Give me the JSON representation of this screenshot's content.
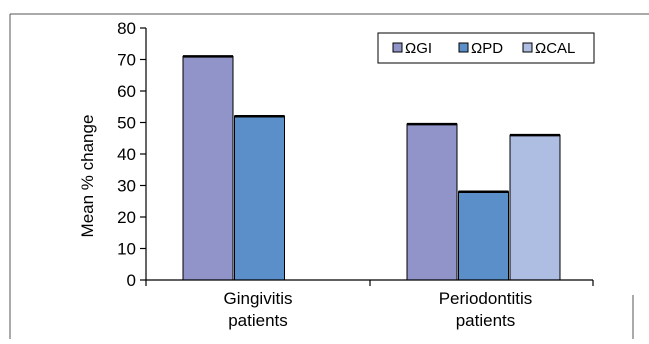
{
  "chart_data": {
    "type": "bar",
    "categories": [
      [
        "Gingivitis",
        "patients"
      ],
      [
        "Periodontitis",
        "patients"
      ]
    ],
    "series": [
      {
        "name": "ΩGI",
        "values": [
          71,
          49.5
        ],
        "color": "#9194c9"
      },
      {
        "name": "ΩPD",
        "values": [
          52,
          28
        ],
        "color": "#5a8fc9"
      },
      {
        "name": "ΩCAL",
        "values": [
          null,
          46
        ],
        "color": "#aebde2"
      }
    ],
    "title": "",
    "xlabel": "",
    "ylabel": "Mean % change",
    "ylim": [
      0,
      80
    ],
    "yticks": [
      0,
      10,
      20,
      30,
      40,
      50,
      60,
      70,
      80
    ],
    "grid": false,
    "legend_position": "top-right"
  }
}
